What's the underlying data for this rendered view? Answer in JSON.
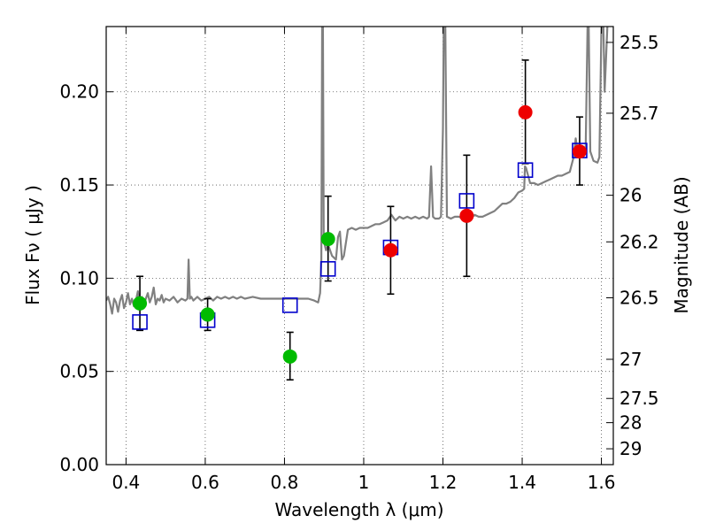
{
  "chart_data": {
    "type": "scatter",
    "title": "",
    "xlabel": "Wavelength  λ (μm)",
    "ylabel": "Flux  Fν  ( μJy )",
    "y2label": "Magnitude (AB)",
    "xlim": [
      0.35,
      1.63
    ],
    "ylim": [
      0.0,
      0.235
    ],
    "grid": true,
    "xticks": [
      {
        "value": 0.4,
        "label": "0.4"
      },
      {
        "value": 0.6,
        "label": "0.6"
      },
      {
        "value": 0.8,
        "label": "0.8"
      },
      {
        "value": 1.0,
        "label": "1"
      },
      {
        "value": 1.2,
        "label": "1.2"
      },
      {
        "value": 1.4,
        "label": "1.4"
      },
      {
        "value": 1.6,
        "label": "1.6"
      }
    ],
    "yticks": [
      {
        "value": 0.0,
        "label": "0.00"
      },
      {
        "value": 0.05,
        "label": "0.05"
      },
      {
        "value": 0.1,
        "label": "0.10"
      },
      {
        "value": 0.15,
        "label": "0.15"
      },
      {
        "value": 0.2,
        "label": "0.20"
      }
    ],
    "mag_ticks": [
      {
        "flux": 0.2265,
        "label": "25.5"
      },
      {
        "flux": 0.1885,
        "label": "25.7"
      },
      {
        "flux": 0.1445,
        "label": "26"
      },
      {
        "flux": 0.1195,
        "label": "26.2"
      },
      {
        "flux": 0.0895,
        "label": "26.5"
      },
      {
        "flux": 0.0565,
        "label": "27"
      },
      {
        "flux": 0.0355,
        "label": "27.5"
      },
      {
        "flux": 0.0225,
        "label": "28"
      },
      {
        "flux": 0.0085,
        "label": "29"
      }
    ],
    "colors": {
      "spectrum": "#808080",
      "green": "#00bb00",
      "red": "#ee0000",
      "model": "#0000cc",
      "errorbar": "#000000",
      "grid": "#555555"
    },
    "series": [
      {
        "kind": "observed",
        "color": "green",
        "points": [
          {
            "x": 0.435,
            "y": 0.0865,
            "yerr_lo": 0.0145,
            "yerr_hi": 0.0145
          },
          {
            "x": 0.606,
            "y": 0.0805,
            "yerr_lo": 0.0085,
            "yerr_hi": 0.0085
          },
          {
            "x": 0.814,
            "y": 0.058,
            "yerr_lo": 0.0125,
            "yerr_hi": 0.013
          },
          {
            "x": 0.91,
            "y": 0.121,
            "yerr_lo": 0.0225,
            "yerr_hi": 0.023
          }
        ]
      },
      {
        "kind": "observed",
        "color": "red",
        "points": [
          {
            "x": 1.068,
            "y": 0.115,
            "yerr_lo": 0.0235,
            "yerr_hi": 0.0235
          },
          {
            "x": 1.26,
            "y": 0.1335,
            "yerr_lo": 0.0325,
            "yerr_hi": 0.0325
          },
          {
            "x": 1.408,
            "y": 0.189,
            "yerr_lo": 0.0275,
            "yerr_hi": 0.028
          },
          {
            "x": 1.545,
            "y": 0.168,
            "yerr_lo": 0.018,
            "yerr_hi": 0.0185
          }
        ]
      },
      {
        "kind": "model",
        "marker": "open-square",
        "points": [
          {
            "x": 0.435,
            "y": 0.0765
          },
          {
            "x": 0.606,
            "y": 0.0775
          },
          {
            "x": 0.814,
            "y": 0.0855
          },
          {
            "x": 0.91,
            "y": 0.105
          },
          {
            "x": 1.068,
            "y": 0.1165
          },
          {
            "x": 1.26,
            "y": 0.1415
          },
          {
            "x": 1.408,
            "y": 0.158
          },
          {
            "x": 1.545,
            "y": 0.1685
          }
        ]
      },
      {
        "kind": "spectrum",
        "points": [
          [
            0.35,
            0.088
          ],
          [
            0.355,
            0.09
          ],
          [
            0.36,
            0.086
          ],
          [
            0.365,
            0.081
          ],
          [
            0.37,
            0.089
          ],
          [
            0.375,
            0.087
          ],
          [
            0.38,
            0.082
          ],
          [
            0.385,
            0.088
          ],
          [
            0.39,
            0.091
          ],
          [
            0.395,
            0.084
          ],
          [
            0.4,
            0.087
          ],
          [
            0.405,
            0.092
          ],
          [
            0.41,
            0.086
          ],
          [
            0.415,
            0.089
          ],
          [
            0.42,
            0.085
          ],
          [
            0.425,
            0.088
          ],
          [
            0.43,
            0.093
          ],
          [
            0.435,
            0.087
          ],
          [
            0.44,
            0.09
          ],
          [
            0.445,
            0.086
          ],
          [
            0.45,
            0.089
          ],
          [
            0.455,
            0.092
          ],
          [
            0.46,
            0.087
          ],
          [
            0.465,
            0.09
          ],
          [
            0.47,
            0.095
          ],
          [
            0.475,
            0.086
          ],
          [
            0.48,
            0.089
          ],
          [
            0.485,
            0.088
          ],
          [
            0.49,
            0.091
          ],
          [
            0.495,
            0.087
          ],
          [
            0.5,
            0.089
          ],
          [
            0.51,
            0.088
          ],
          [
            0.52,
            0.09
          ],
          [
            0.53,
            0.087
          ],
          [
            0.54,
            0.089
          ],
          [
            0.55,
            0.088
          ],
          [
            0.555,
            0.089
          ],
          [
            0.558,
            0.11
          ],
          [
            0.561,
            0.089
          ],
          [
            0.565,
            0.09
          ],
          [
            0.57,
            0.088
          ],
          [
            0.58,
            0.09
          ],
          [
            0.59,
            0.088
          ],
          [
            0.6,
            0.089
          ],
          [
            0.61,
            0.09
          ],
          [
            0.62,
            0.088
          ],
          [
            0.63,
            0.09
          ],
          [
            0.64,
            0.089
          ],
          [
            0.65,
            0.09
          ],
          [
            0.66,
            0.089
          ],
          [
            0.67,
            0.09
          ],
          [
            0.68,
            0.089
          ],
          [
            0.69,
            0.09
          ],
          [
            0.7,
            0.089
          ],
          [
            0.72,
            0.09
          ],
          [
            0.74,
            0.089
          ],
          [
            0.76,
            0.089
          ],
          [
            0.78,
            0.089
          ],
          [
            0.8,
            0.089
          ],
          [
            0.82,
            0.089
          ],
          [
            0.84,
            0.089
          ],
          [
            0.86,
            0.089
          ],
          [
            0.875,
            0.088
          ],
          [
            0.885,
            0.087
          ],
          [
            0.89,
            0.092
          ],
          [
            0.893,
            0.11
          ],
          [
            0.895,
            0.235
          ],
          [
            0.897,
            0.235
          ],
          [
            0.899,
            0.12
          ],
          [
            0.905,
            0.115
          ],
          [
            0.91,
            0.118
          ],
          [
            0.92,
            0.112
          ],
          [
            0.93,
            0.11
          ],
          [
            0.935,
            0.122
          ],
          [
            0.94,
            0.125
          ],
          [
            0.945,
            0.11
          ],
          [
            0.95,
            0.112
          ],
          [
            0.96,
            0.126
          ],
          [
            0.97,
            0.127
          ],
          [
            0.98,
            0.126
          ],
          [
            0.99,
            0.127
          ],
          [
            1.0,
            0.127
          ],
          [
            1.01,
            0.127
          ],
          [
            1.02,
            0.128
          ],
          [
            1.03,
            0.129
          ],
          [
            1.04,
            0.129
          ],
          [
            1.05,
            0.13
          ],
          [
            1.06,
            0.131
          ],
          [
            1.07,
            0.134
          ],
          [
            1.08,
            0.131
          ],
          [
            1.09,
            0.133
          ],
          [
            1.1,
            0.132
          ],
          [
            1.11,
            0.133
          ],
          [
            1.12,
            0.132
          ],
          [
            1.13,
            0.133
          ],
          [
            1.14,
            0.132
          ],
          [
            1.15,
            0.133
          ],
          [
            1.16,
            0.132
          ],
          [
            1.165,
            0.133
          ],
          [
            1.17,
            0.16
          ],
          [
            1.175,
            0.133
          ],
          [
            1.18,
            0.132
          ],
          [
            1.19,
            0.132
          ],
          [
            1.195,
            0.133
          ],
          [
            1.2,
            0.18
          ],
          [
            1.202,
            0.235
          ],
          [
            1.206,
            0.235
          ],
          [
            1.21,
            0.133
          ],
          [
            1.22,
            0.132
          ],
          [
            1.23,
            0.133
          ],
          [
            1.24,
            0.133
          ],
          [
            1.25,
            0.132
          ],
          [
            1.26,
            0.133
          ],
          [
            1.27,
            0.132
          ],
          [
            1.28,
            0.134
          ],
          [
            1.29,
            0.133
          ],
          [
            1.3,
            0.133
          ],
          [
            1.31,
            0.134
          ],
          [
            1.32,
            0.135
          ],
          [
            1.33,
            0.136
          ],
          [
            1.34,
            0.138
          ],
          [
            1.35,
            0.14
          ],
          [
            1.36,
            0.14
          ],
          [
            1.37,
            0.141
          ],
          [
            1.38,
            0.143
          ],
          [
            1.39,
            0.146
          ],
          [
            1.4,
            0.147
          ],
          [
            1.405,
            0.148
          ],
          [
            1.407,
            0.16
          ],
          [
            1.41,
            0.159
          ],
          [
            1.42,
            0.151
          ],
          [
            1.43,
            0.151
          ],
          [
            1.44,
            0.15
          ],
          [
            1.45,
            0.151
          ],
          [
            1.46,
            0.152
          ],
          [
            1.47,
            0.153
          ],
          [
            1.48,
            0.154
          ],
          [
            1.49,
            0.155
          ],
          [
            1.5,
            0.155
          ],
          [
            1.51,
            0.156
          ],
          [
            1.52,
            0.157
          ],
          [
            1.53,
            0.165
          ],
          [
            1.535,
            0.175
          ],
          [
            1.54,
            0.168
          ],
          [
            1.55,
            0.165
          ],
          [
            1.56,
            0.167
          ],
          [
            1.565,
            0.235
          ],
          [
            1.568,
            0.235
          ],
          [
            1.572,
            0.168
          ],
          [
            1.58,
            0.163
          ],
          [
            1.59,
            0.162
          ],
          [
            1.595,
            0.165
          ],
          [
            1.6,
            0.235
          ],
          [
            1.605,
            0.235
          ],
          [
            1.608,
            0.2
          ],
          [
            1.615,
            0.235
          ]
        ]
      }
    ]
  }
}
